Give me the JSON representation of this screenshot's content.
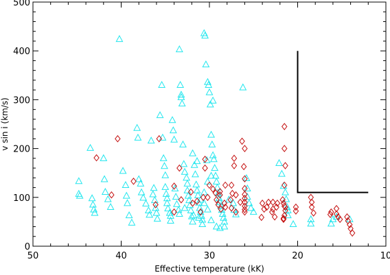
{
  "chart_data": {
    "type": "scatter",
    "xlabel": "Effective temperature (kK)",
    "ylabel": "v sin i (km/s)",
    "xlim": [
      50,
      10
    ],
    "ylim": [
      0,
      500
    ],
    "x_ticks": [
      "50",
      "40",
      "30",
      "20",
      "10"
    ],
    "y_ticks": [
      "0",
      "100",
      "200",
      "300",
      "400",
      "500"
    ],
    "grid": false,
    "legend": "none",
    "colors": {
      "triangles": "#22e6ee",
      "diamonds": "#c41010",
      "line": "#000000"
    },
    "series": [
      {
        "marker": "triangle",
        "color": "#22e6ee",
        "points": [
          [
            44.8,
            133
          ],
          [
            44.8,
            107
          ],
          [
            44.7,
            103
          ],
          [
            43.5,
            201
          ],
          [
            43.3,
            98
          ],
          [
            43.2,
            85
          ],
          [
            43.1,
            75
          ],
          [
            43.0,
            68
          ],
          [
            42.0,
            180
          ],
          [
            41.9,
            137
          ],
          [
            41.8,
            111
          ],
          [
            41.5,
            96
          ],
          [
            41.2,
            80
          ],
          [
            40.2,
            424
          ],
          [
            39.8,
            154
          ],
          [
            39.5,
            125
          ],
          [
            39.4,
            103
          ],
          [
            39.3,
            88
          ],
          [
            39.1,
            63
          ],
          [
            38.8,
            48
          ],
          [
            38.2,
            242
          ],
          [
            38.1,
            222
          ],
          [
            38.0,
            137
          ],
          [
            37.8,
            128
          ],
          [
            37.7,
            110
          ],
          [
            37.5,
            99
          ],
          [
            37.2,
            87
          ],
          [
            36.9,
            73
          ],
          [
            36.8,
            64
          ],
          [
            36.6,
            216
          ],
          [
            36.4,
            106
          ],
          [
            36.3,
            119
          ],
          [
            36.2,
            94
          ],
          [
            36.1,
            78
          ],
          [
            36.0,
            68
          ],
          [
            35.9,
            56
          ],
          [
            35.6,
            268
          ],
          [
            35.4,
            330
          ],
          [
            35.3,
            222
          ],
          [
            35.2,
            180
          ],
          [
            35.1,
            164
          ],
          [
            35.0,
            145
          ],
          [
            35.0,
            121
          ],
          [
            34.9,
            107
          ],
          [
            34.8,
            98
          ],
          [
            34.8,
            88
          ],
          [
            34.7,
            77
          ],
          [
            34.5,
            68
          ],
          [
            34.4,
            62
          ],
          [
            34.4,
            52
          ],
          [
            34.2,
            258
          ],
          [
            34.1,
            237
          ],
          [
            34.0,
            218
          ],
          [
            33.9,
            118
          ],
          [
            33.8,
            101
          ],
          [
            33.7,
            86
          ],
          [
            33.5,
            74
          ],
          [
            33.4,
            66
          ],
          [
            33.4,
            403
          ],
          [
            33.3,
            330
          ],
          [
            33.2,
            310
          ],
          [
            33.2,
            305
          ],
          [
            33.1,
            292
          ],
          [
            33.0,
            208
          ],
          [
            32.9,
            168
          ],
          [
            32.8,
            152
          ],
          [
            32.6,
            140
          ],
          [
            32.5,
            128
          ],
          [
            32.5,
            114
          ],
          [
            32.4,
            103
          ],
          [
            32.3,
            94
          ],
          [
            32.2,
            84
          ],
          [
            32.1,
            73
          ],
          [
            32.0,
            61
          ],
          [
            31.9,
            50
          ],
          [
            31.7,
            166
          ],
          [
            31.6,
            147
          ],
          [
            31.5,
            126
          ],
          [
            31.4,
            114
          ],
          [
            31.3,
            104
          ],
          [
            31.2,
            89
          ],
          [
            31.1,
            78
          ],
          [
            31.0,
            70
          ],
          [
            30.9,
            62
          ],
          [
            30.8,
            54
          ],
          [
            30.8,
            45
          ],
          [
            30.6,
            436
          ],
          [
            30.5,
            431
          ],
          [
            30.4,
            372
          ],
          [
            30.2,
            336
          ],
          [
            30.1,
            330
          ],
          [
            30.0,
            315
          ],
          [
            29.9,
            290
          ],
          [
            29.8,
            228
          ],
          [
            29.7,
            208
          ],
          [
            29.6,
            186
          ],
          [
            29.5,
            178
          ],
          [
            29.4,
            160
          ],
          [
            29.3,
            144
          ],
          [
            29.2,
            132
          ],
          [
            29.1,
            120
          ],
          [
            29.0,
            108
          ],
          [
            28.9,
            98
          ],
          [
            28.8,
            90
          ],
          [
            28.7,
            82
          ],
          [
            28.6,
            74
          ],
          [
            28.5,
            66
          ],
          [
            28.4,
            58
          ],
          [
            28.3,
            50
          ],
          [
            28.3,
            40
          ],
          [
            29.6,
            298
          ],
          [
            31.4,
            174
          ],
          [
            30.3,
            176
          ],
          [
            31.9,
            190
          ],
          [
            30.2,
            75
          ],
          [
            31.0,
            95
          ],
          [
            30.6,
            110
          ],
          [
            30.2,
            132
          ],
          [
            29.8,
            144
          ],
          [
            31.2,
            58
          ],
          [
            31.8,
            63
          ],
          [
            32.8,
            78
          ],
          [
            29.2,
            40
          ],
          [
            28.8,
            37
          ],
          [
            29.8,
            53
          ],
          [
            30.6,
            88
          ],
          [
            27.8,
            95
          ],
          [
            27.3,
            88
          ],
          [
            27.2,
            74
          ],
          [
            27.0,
            65
          ],
          [
            26.2,
            325
          ],
          [
            25.8,
            139
          ],
          [
            25.7,
            118
          ],
          [
            25.7,
            101
          ],
          [
            25.5,
            88
          ],
          [
            25.3,
            78
          ],
          [
            25.0,
            70
          ],
          [
            22.1,
            170
          ],
          [
            21.8,
            148
          ],
          [
            21.6,
            123
          ],
          [
            21.4,
            110
          ],
          [
            21.3,
            96
          ],
          [
            21.2,
            80
          ],
          [
            21.1,
            73
          ],
          [
            21.1,
            63
          ],
          [
            20.5,
            45
          ],
          [
            18.5,
            55
          ],
          [
            18.5,
            46
          ],
          [
            16.2,
            46
          ],
          [
            16.0,
            55
          ],
          [
            15.6,
            60
          ],
          [
            14.1,
            55
          ]
        ]
      },
      {
        "marker": "diamond",
        "color": "#c41010",
        "points": [
          [
            42.8,
            181
          ],
          [
            40.4,
            220
          ],
          [
            41.1,
            105
          ],
          [
            38.6,
            133
          ],
          [
            35.7,
            220
          ],
          [
            36.1,
            85
          ],
          [
            33.4,
            160
          ],
          [
            34.0,
            123
          ],
          [
            33.2,
            95
          ],
          [
            34.0,
            70
          ],
          [
            30.5,
            160
          ],
          [
            30.5,
            178
          ],
          [
            29.3,
            109
          ],
          [
            28.8,
            105
          ],
          [
            29.0,
            85
          ],
          [
            28.2,
            80
          ],
          [
            27.5,
            125
          ],
          [
            27.0,
            105
          ],
          [
            27.6,
            95
          ],
          [
            27.0,
            70
          ],
          [
            26.3,
            215
          ],
          [
            26.0,
            200
          ],
          [
            26.1,
            163
          ],
          [
            26.0,
            138
          ],
          [
            26.0,
            118
          ],
          [
            26.0,
            106
          ],
          [
            26.0,
            98
          ],
          [
            26.0,
            90
          ],
          [
            26.0,
            82
          ],
          [
            26.0,
            75
          ],
          [
            26.0,
            70
          ],
          [
            27.2,
            180
          ],
          [
            27.2,
            165
          ],
          [
            28.8,
            112
          ],
          [
            29.2,
            95
          ],
          [
            29.6,
            117
          ],
          [
            30.0,
            125
          ],
          [
            30.2,
            100
          ],
          [
            28.2,
            125
          ],
          [
            28.7,
            76
          ],
          [
            27.5,
            78
          ],
          [
            26.5,
            90
          ],
          [
            30.7,
            100
          ],
          [
            31.0,
            70
          ],
          [
            31.4,
            92
          ],
          [
            28.3,
            88
          ],
          [
            21.5,
            245
          ],
          [
            21.5,
            200
          ],
          [
            21.4,
            165
          ],
          [
            21.5,
            125
          ],
          [
            21.7,
            95
          ],
          [
            21.6,
            88
          ],
          [
            21.5,
            82
          ],
          [
            21.4,
            80
          ],
          [
            21.4,
            73
          ],
          [
            21.5,
            63
          ],
          [
            21.6,
            57
          ],
          [
            21.6,
            55
          ],
          [
            22.4,
            80
          ],
          [
            22.3,
            88
          ],
          [
            23.3,
            90
          ],
          [
            23.5,
            80
          ],
          [
            23.8,
            76
          ],
          [
            24.0,
            88
          ],
          [
            22.9,
            70
          ],
          [
            22.8,
            76
          ],
          [
            22.6,
            60
          ],
          [
            20.2,
            80
          ],
          [
            20.2,
            72
          ],
          [
            18.5,
            100
          ],
          [
            18.4,
            90
          ],
          [
            18.4,
            80
          ],
          [
            18.2,
            68
          ],
          [
            16.2,
            70
          ],
          [
            16.3,
            65
          ],
          [
            15.6,
            77
          ],
          [
            15.6,
            66
          ],
          [
            15.4,
            60
          ],
          [
            15.2,
            55
          ],
          [
            14.4,
            60
          ],
          [
            14.3,
            52
          ],
          [
            14.1,
            44
          ],
          [
            14.0,
            36
          ],
          [
            13.8,
            27
          ],
          [
            24.1,
            59
          ],
          [
            27.4,
            108
          ],
          [
            22.8,
            90
          ],
          [
            32.1,
            111
          ],
          [
            31.9,
            88
          ]
        ]
      }
    ],
    "reference_line": [
      [
        20,
        400
      ],
      [
        20,
        110
      ],
      [
        12,
        110
      ]
    ]
  }
}
